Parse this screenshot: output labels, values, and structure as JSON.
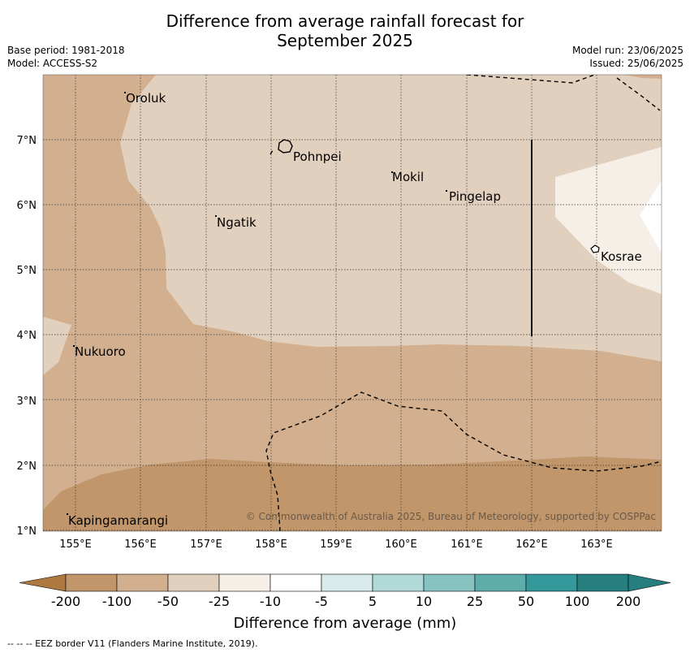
{
  "title": {
    "line1": "Difference from average rainfall forecast for",
    "line2": "September 2025"
  },
  "meta": {
    "base_period": "Base period: 1981-2018",
    "model": "Model: ACCESS-S2",
    "model_run": "Model run: 23/06/2025",
    "issued": "Issued: 25/06/2025"
  },
  "map": {
    "lon_labels": [
      "155°E",
      "156°E",
      "157°E",
      "158°E",
      "159°E",
      "160°E",
      "161°E",
      "162°E",
      "163°E"
    ],
    "lat_labels": [
      "7°N",
      "6°N",
      "5°N",
      "4°N",
      "3°N",
      "2°N",
      "1°N"
    ],
    "places": [
      "Oroluk",
      "Pohnpei",
      "Mokil",
      "Pingelap",
      "Ngatik",
      "Kosrae",
      "Nukuoro",
      "Kapingamarangi"
    ],
    "copyright": "© Commonwealth of Australia 2025, Bureau of Meteorology, supported by COSPPac"
  },
  "legend": {
    "ticks": [
      "-200",
      "-100",
      "-50",
      "-25",
      "-10",
      "-5",
      "5",
      "10",
      "25",
      "50",
      "100",
      "200"
    ],
    "colors": [
      "#ae7841",
      "#c0966a",
      "#d2b08f",
      "#e2d0be",
      "#f6efe8",
      "#ffffff",
      "#d8ebea",
      "#b1d9d7",
      "#86c3c1",
      "#5eadaa",
      "#35989a",
      "#267f7e"
    ],
    "label": "Difference from average (mm)"
  },
  "footer": "--  --  -- EEZ border V11 (Flanders Marine Institute, 2019)."
}
